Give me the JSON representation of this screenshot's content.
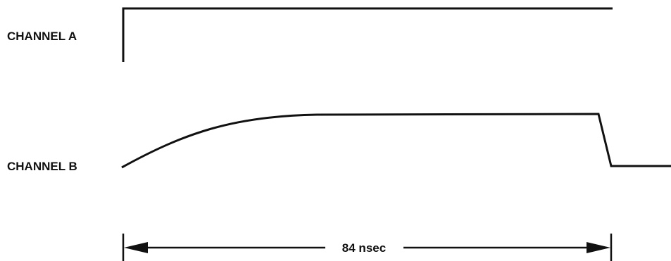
{
  "diagram": {
    "channel_a": {
      "label": "CHANNEL A"
    },
    "channel_b": {
      "label": "CHANNEL B"
    },
    "dimension": {
      "label": "84 nsec"
    }
  }
}
